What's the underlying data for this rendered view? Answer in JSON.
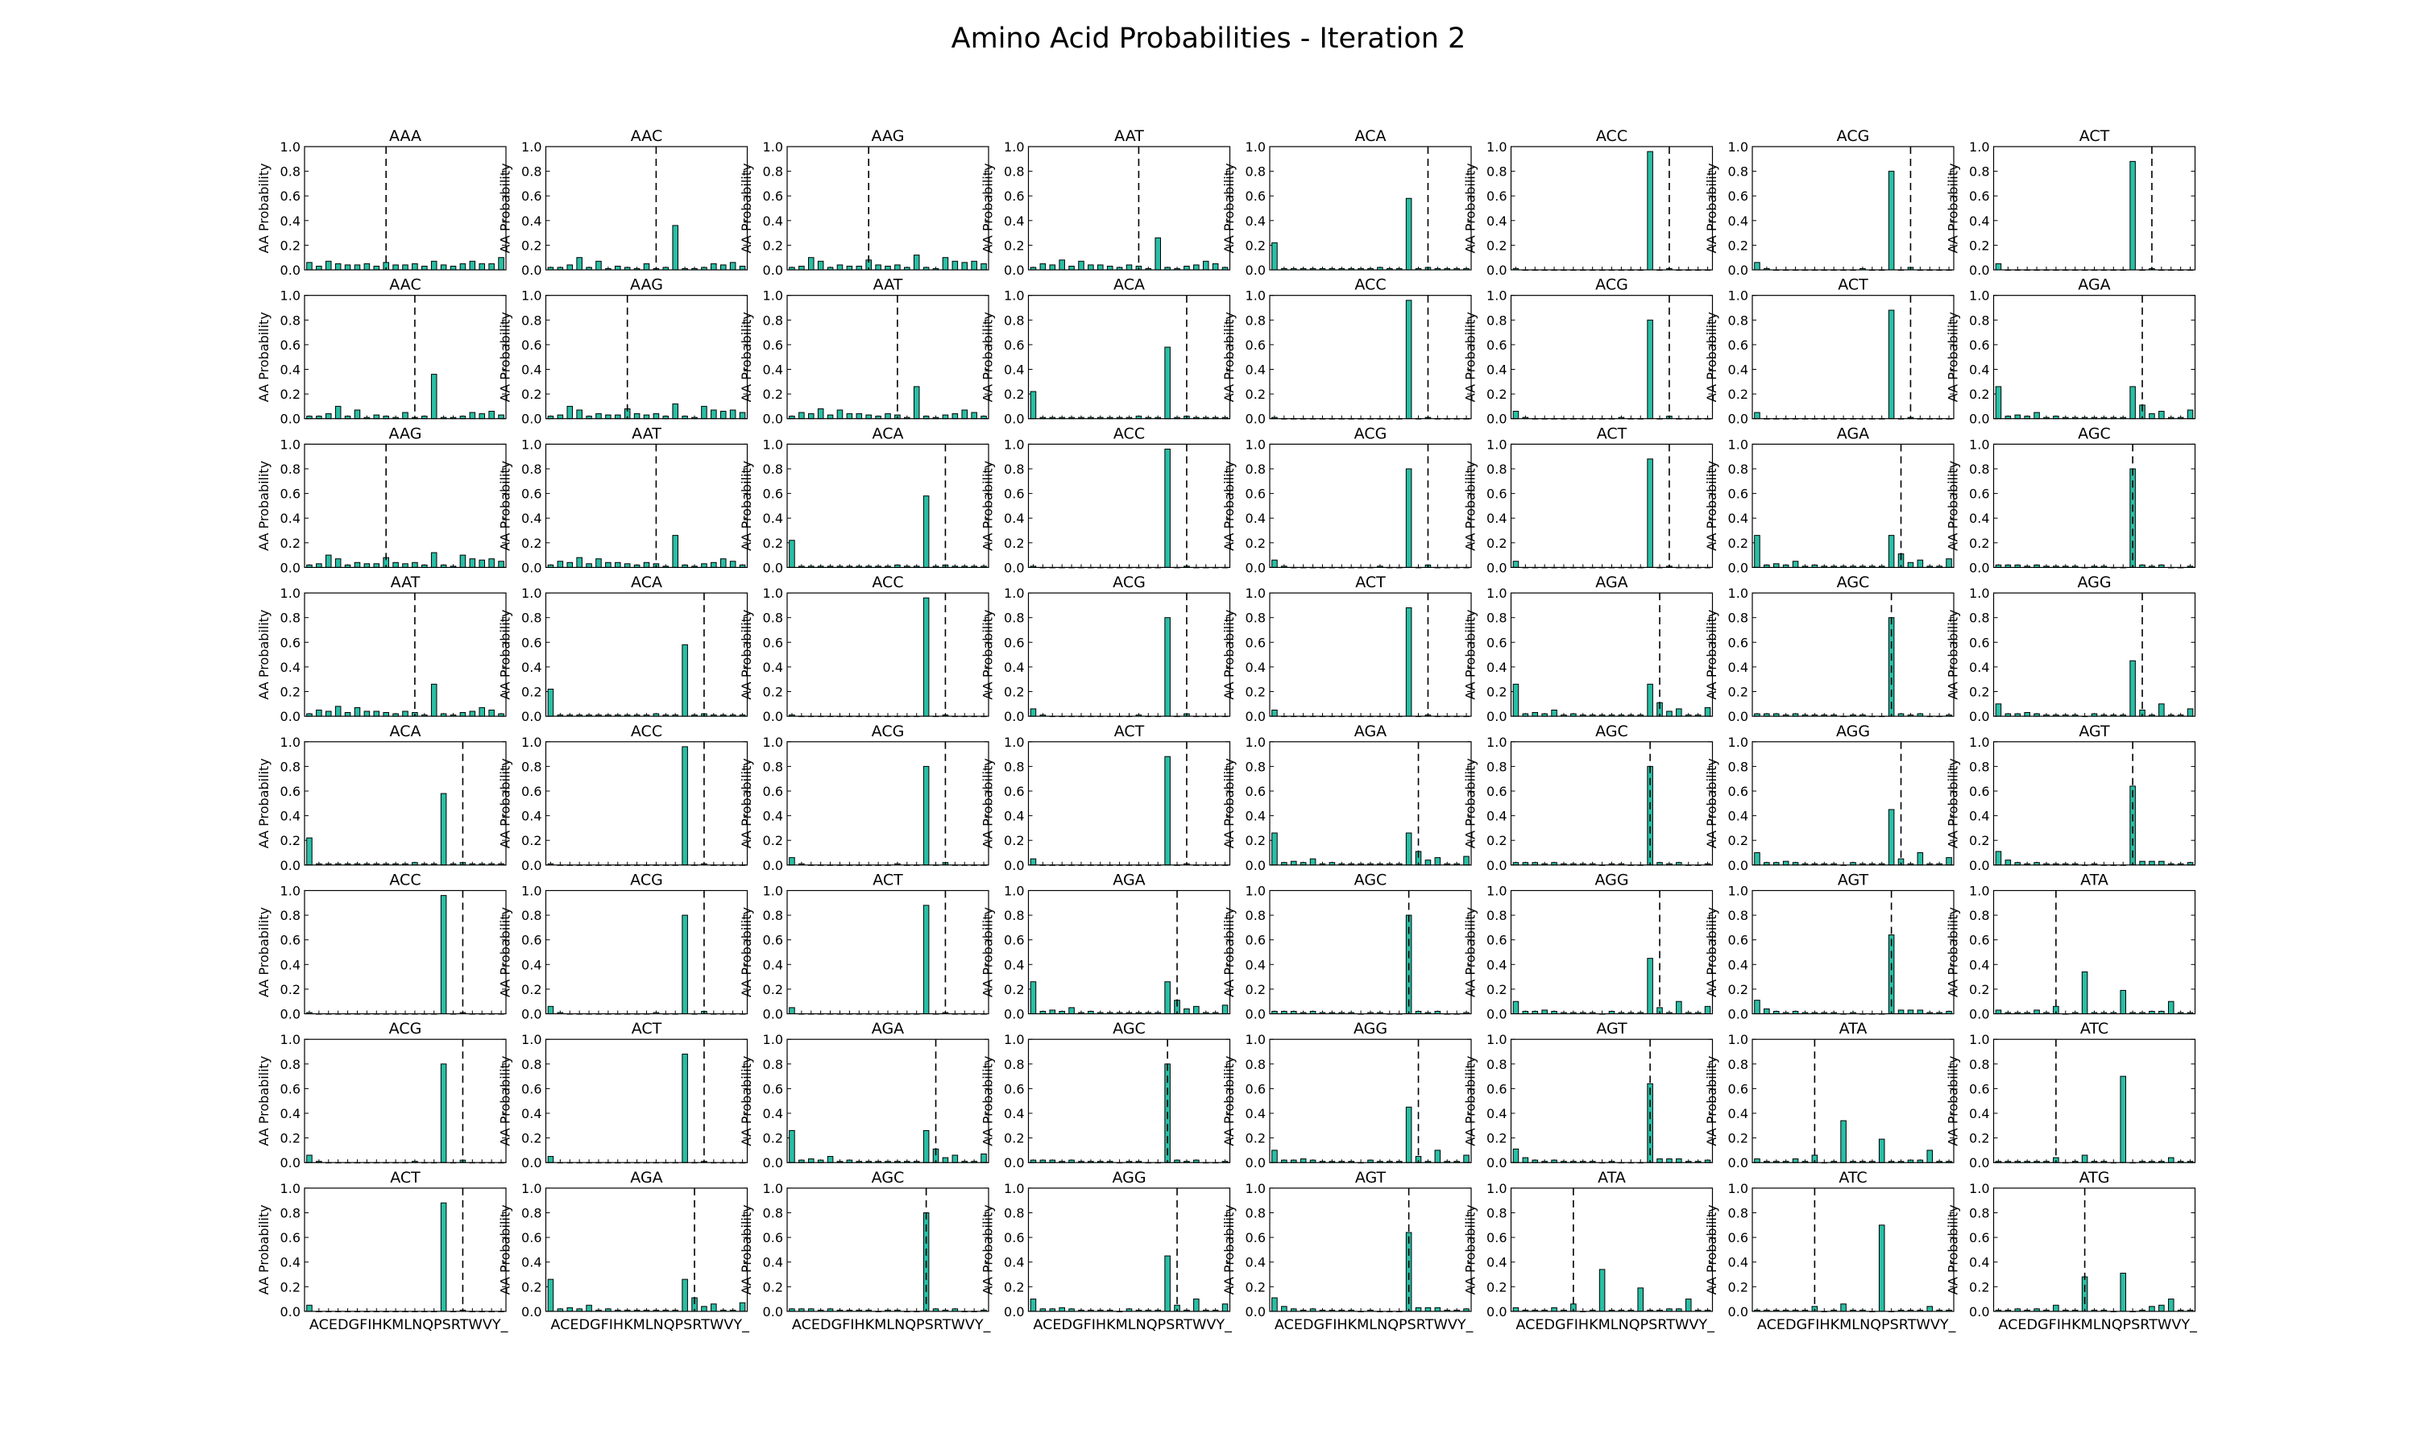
{
  "figure": {
    "title": "Amino Acid Probabilities - Iteration 2"
  },
  "styles": {
    "bar_fill": "#29bfa5",
    "bar_edge": "#000000",
    "axis_color": "#000000",
    "marker_line": "#000000"
  },
  "chart_data": {
    "type": "bar",
    "layout": {
      "rows": 8,
      "cols": 8
    },
    "ylabel": "AA Probability",
    "ylim": [
      0,
      1
    ],
    "yticks": [
      "0.0",
      "0.2",
      "0.4",
      "0.6",
      "0.8",
      "1.0"
    ],
    "categories": [
      "A",
      "C",
      "E",
      "D",
      "G",
      "F",
      "I",
      "H",
      "K",
      "M",
      "L",
      "N",
      "Q",
      "P",
      "S",
      "R",
      "T",
      "W",
      "V",
      "Y",
      "_"
    ],
    "xtick_labels_shown_on_bottom_row": true,
    "codon_order": [
      "AAA",
      "AAC",
      "AAG",
      "AAT",
      "ACA",
      "ACC",
      "ACG",
      "ACT",
      "AGA",
      "AGC",
      "AGG",
      "AGT",
      "ATA",
      "ATC",
      "ATG"
    ],
    "profiles": {
      "AAA": {
        "marker": "K",
        "values": [
          0.06,
          0.03,
          0.07,
          0.05,
          0.04,
          0.04,
          0.05,
          0.03,
          0.06,
          0.04,
          0.04,
          0.05,
          0.03,
          0.07,
          0.04,
          0.03,
          0.05,
          0.07,
          0.05,
          0.05,
          0.1
        ]
      },
      "AAC": {
        "marker": "N",
        "values": [
          0.02,
          0.02,
          0.04,
          0.1,
          0.02,
          0.07,
          0.01,
          0.03,
          0.02,
          0.01,
          0.05,
          0.01,
          0.02,
          0.36,
          0.01,
          0.01,
          0.02,
          0.05,
          0.04,
          0.06,
          0.03
        ]
      },
      "AAG": {
        "marker": "K",
        "values": [
          0.02,
          0.03,
          0.1,
          0.07,
          0.02,
          0.04,
          0.03,
          0.03,
          0.08,
          0.04,
          0.03,
          0.04,
          0.02,
          0.12,
          0.02,
          0.01,
          0.1,
          0.07,
          0.06,
          0.07,
          0.05
        ]
      },
      "AAT": {
        "marker": "N",
        "values": [
          0.02,
          0.05,
          0.04,
          0.08,
          0.03,
          0.07,
          0.04,
          0.04,
          0.03,
          0.02,
          0.04,
          0.03,
          0.01,
          0.26,
          0.02,
          0.01,
          0.03,
          0.04,
          0.07,
          0.05,
          0.02
        ]
      },
      "ACA": {
        "marker": "T",
        "values": [
          0.22,
          0.01,
          0.01,
          0.01,
          0.01,
          0.01,
          0.01,
          0.01,
          0.01,
          0.01,
          0.01,
          0.02,
          0.01,
          0.01,
          0.58,
          0.01,
          0.02,
          0.01,
          0.01,
          0.01,
          0.01
        ]
      },
      "ACC": {
        "marker": "T",
        "values": [
          0.01,
          0.0,
          0.0,
          0.0,
          0.0,
          0.0,
          0.0,
          0.0,
          0.0,
          0.0,
          0.0,
          0.0,
          0.0,
          0.0,
          0.96,
          0.0,
          0.01,
          0.0,
          0.0,
          0.0,
          0.0
        ]
      },
      "ACG": {
        "marker": "T",
        "values": [
          0.06,
          0.01,
          0.0,
          0.0,
          0.0,
          0.0,
          0.0,
          0.0,
          0.0,
          0.0,
          0.0,
          0.01,
          0.0,
          0.0,
          0.8,
          0.0,
          0.02,
          0.0,
          0.0,
          0.0,
          0.0
        ]
      },
      "ACT": {
        "marker": "T",
        "values": [
          0.05,
          0.0,
          0.0,
          0.0,
          0.0,
          0.0,
          0.0,
          0.0,
          0.0,
          0.0,
          0.0,
          0.0,
          0.0,
          0.0,
          0.88,
          0.0,
          0.01,
          0.0,
          0.0,
          0.0,
          0.0
        ]
      },
      "AGA": {
        "marker": "R",
        "values": [
          0.26,
          0.02,
          0.03,
          0.02,
          0.05,
          0.01,
          0.02,
          0.01,
          0.01,
          0.01,
          0.01,
          0.01,
          0.01,
          0.01,
          0.26,
          0.11,
          0.04,
          0.06,
          0.01,
          0.01,
          0.07
        ]
      },
      "AGC": {
        "marker": "S",
        "values": [
          0.02,
          0.02,
          0.02,
          0.01,
          0.02,
          0.01,
          0.01,
          0.01,
          0.01,
          0.0,
          0.01,
          0.01,
          0.0,
          0.0,
          0.8,
          0.02,
          0.01,
          0.02,
          0.0,
          0.0,
          0.01
        ]
      },
      "AGG": {
        "marker": "R",
        "values": [
          0.1,
          0.02,
          0.02,
          0.03,
          0.02,
          0.01,
          0.01,
          0.01,
          0.01,
          0.0,
          0.02,
          0.01,
          0.01,
          0.01,
          0.45,
          0.05,
          0.01,
          0.1,
          0.01,
          0.01,
          0.06
        ]
      },
      "AGT": {
        "marker": "S",
        "values": [
          0.11,
          0.04,
          0.02,
          0.01,
          0.02,
          0.01,
          0.01,
          0.01,
          0.01,
          0.0,
          0.01,
          0.0,
          0.0,
          0.0,
          0.64,
          0.03,
          0.03,
          0.03,
          0.01,
          0.01,
          0.02
        ]
      },
      "ATA": {
        "marker": "I",
        "values": [
          0.03,
          0.01,
          0.01,
          0.01,
          0.03,
          0.01,
          0.06,
          0.0,
          0.01,
          0.34,
          0.01,
          0.01,
          0.01,
          0.19,
          0.01,
          0.01,
          0.02,
          0.02,
          0.1,
          0.01,
          0.01
        ]
      },
      "ATC": {
        "marker": "I",
        "values": [
          0.01,
          0.01,
          0.01,
          0.01,
          0.01,
          0.01,
          0.04,
          0.0,
          0.01,
          0.06,
          0.01,
          0.01,
          0.0,
          0.7,
          0.0,
          0.01,
          0.01,
          0.01,
          0.04,
          0.01,
          0.01
        ]
      },
      "ATG": {
        "marker": "M",
        "values": [
          0.01,
          0.01,
          0.02,
          0.01,
          0.02,
          0.01,
          0.05,
          0.01,
          0.01,
          0.28,
          0.01,
          0.01,
          0.0,
          0.31,
          0.0,
          0.01,
          0.04,
          0.05,
          0.1,
          0.01,
          0.01
        ]
      }
    },
    "grid": false,
    "legend": "none"
  }
}
